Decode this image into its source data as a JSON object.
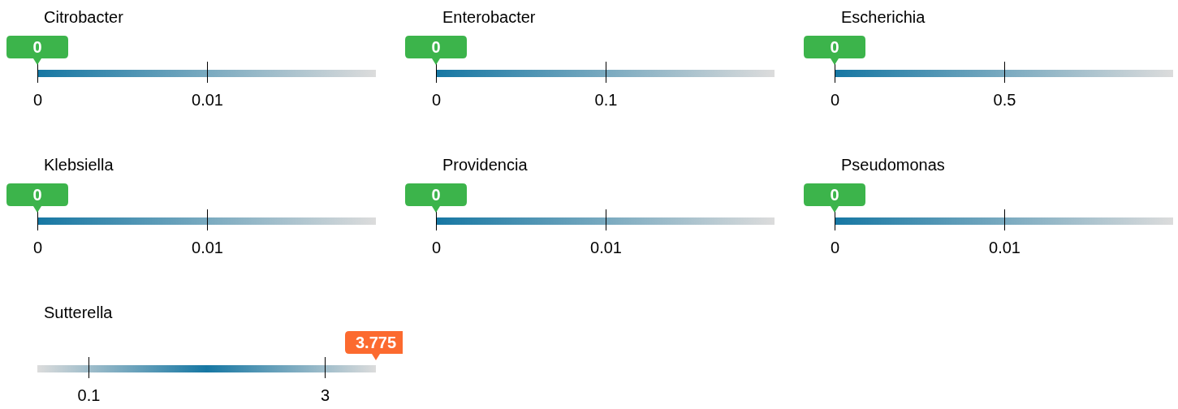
{
  "chart_data": [
    {
      "type": "other",
      "title": "Citrobacter",
      "values": [
        0
      ],
      "colors": [
        "#3cb44b"
      ],
      "annotations": [
        "0",
        "0.01"
      ],
      "data_labels": true
    },
    {
      "type": "other",
      "title": "Enterobacter",
      "values": [
        0
      ],
      "colors": [
        "#3cb44b"
      ],
      "annotations": [
        "0",
        "0.1"
      ],
      "data_labels": true
    },
    {
      "type": "other",
      "title": "Escherichia",
      "values": [
        0
      ],
      "colors": [
        "#3cb44b"
      ],
      "annotations": [
        "0",
        "0.5"
      ],
      "data_labels": true
    },
    {
      "type": "other",
      "title": "Klebsiella",
      "values": [
        0
      ],
      "colors": [
        "#3cb44b"
      ],
      "annotations": [
        "0",
        "0.01"
      ],
      "data_labels": true
    },
    {
      "type": "other",
      "title": "Providencia",
      "values": [
        0
      ],
      "colors": [
        "#3cb44b"
      ],
      "annotations": [
        "0",
        "0.01"
      ],
      "data_labels": true
    },
    {
      "type": "other",
      "title": "Pseudomonas",
      "values": [
        0
      ],
      "colors": [
        "#3cb44b"
      ],
      "annotations": [
        "0",
        "0.01"
      ],
      "data_labels": true
    },
    {
      "type": "other",
      "title": "Sutterella",
      "values": [
        3.775
      ],
      "colors": [
        "#fc6a2f"
      ],
      "annotations": [
        "0.1",
        "3"
      ],
      "data_labels": true
    }
  ]
}
